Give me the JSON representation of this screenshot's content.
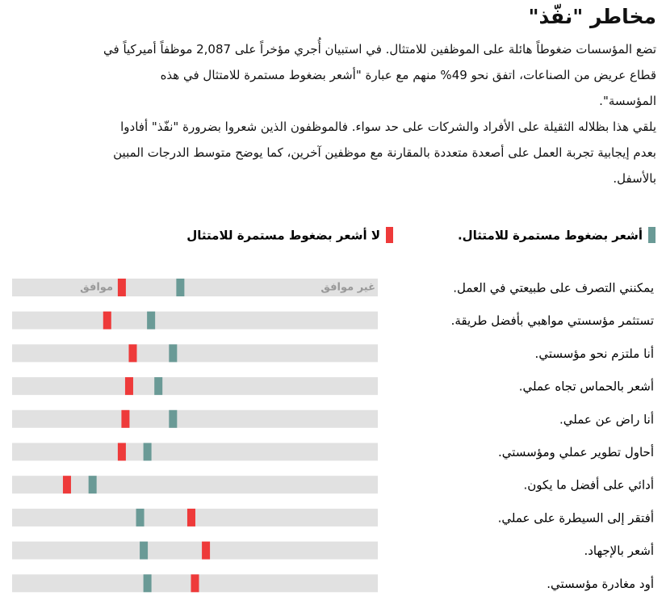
{
  "chart_data": {
    "type": "strip",
    "title": "مخاطر \"نفّذ\"",
    "paragraphs": [
      "تضع المؤسسات ضغوطاً هائلة على الموظفين للامتثال. في استبيان أُجري مؤخراً على 2,087 موظفاً أميركياً في قطاع عريض من الصناعات، اتفق نحو 49% منهم مع عبارة \"أشعر بضغوط مستمرة للامتثال في هذه المؤسسة\".",
      "يلقي هذا بظلاله الثقيلة على الأفراد والشركات على حد سواء. فالموظفون الذين شعروا بضرورة \"نفّذ\" أفادوا بعدم إيجابية تجربة العمل على أصعدة متعددة بالمقارنة مع موظفين آخرين، كما يوضح متوسط الدرجات المبين بالأسفل."
    ],
    "scale_labels": {
      "low": "غير موافق",
      "high": "موافق"
    },
    "categories": [
      "يمكنني التصرف على طبيعتي في العمل.",
      "تستثمر مؤسستي مواهبي بأفضل طريقة.",
      "أنا ملتزم نحو مؤسستي.",
      "أشعر بالحماس تجاه عملي.",
      "أنا راض عن عملي.",
      "أحاول تطوير عملي ومؤسستي.",
      "أدائي على أفضل ما يكون.",
      "أفتقر إلى السيطرة على عملي.",
      "أشعر بالإجهاد.",
      "أود مغادرة مؤسستي."
    ],
    "series": [
      {
        "name": "أشعر بضغوط مستمرة للامتثال.",
        "color": "#6a9a96",
        "values": [
          54,
          62,
          56,
          60,
          56,
          63,
          78,
          65,
          64,
          63
        ]
      },
      {
        "name": "لا أشعر بضغوط مستمرة للامتثال",
        "color": "#ee3a3a",
        "values": [
          70,
          74,
          67,
          68,
          69,
          70,
          85,
          51,
          47,
          50
        ]
      }
    ],
    "xlim": [
      0,
      100
    ]
  }
}
